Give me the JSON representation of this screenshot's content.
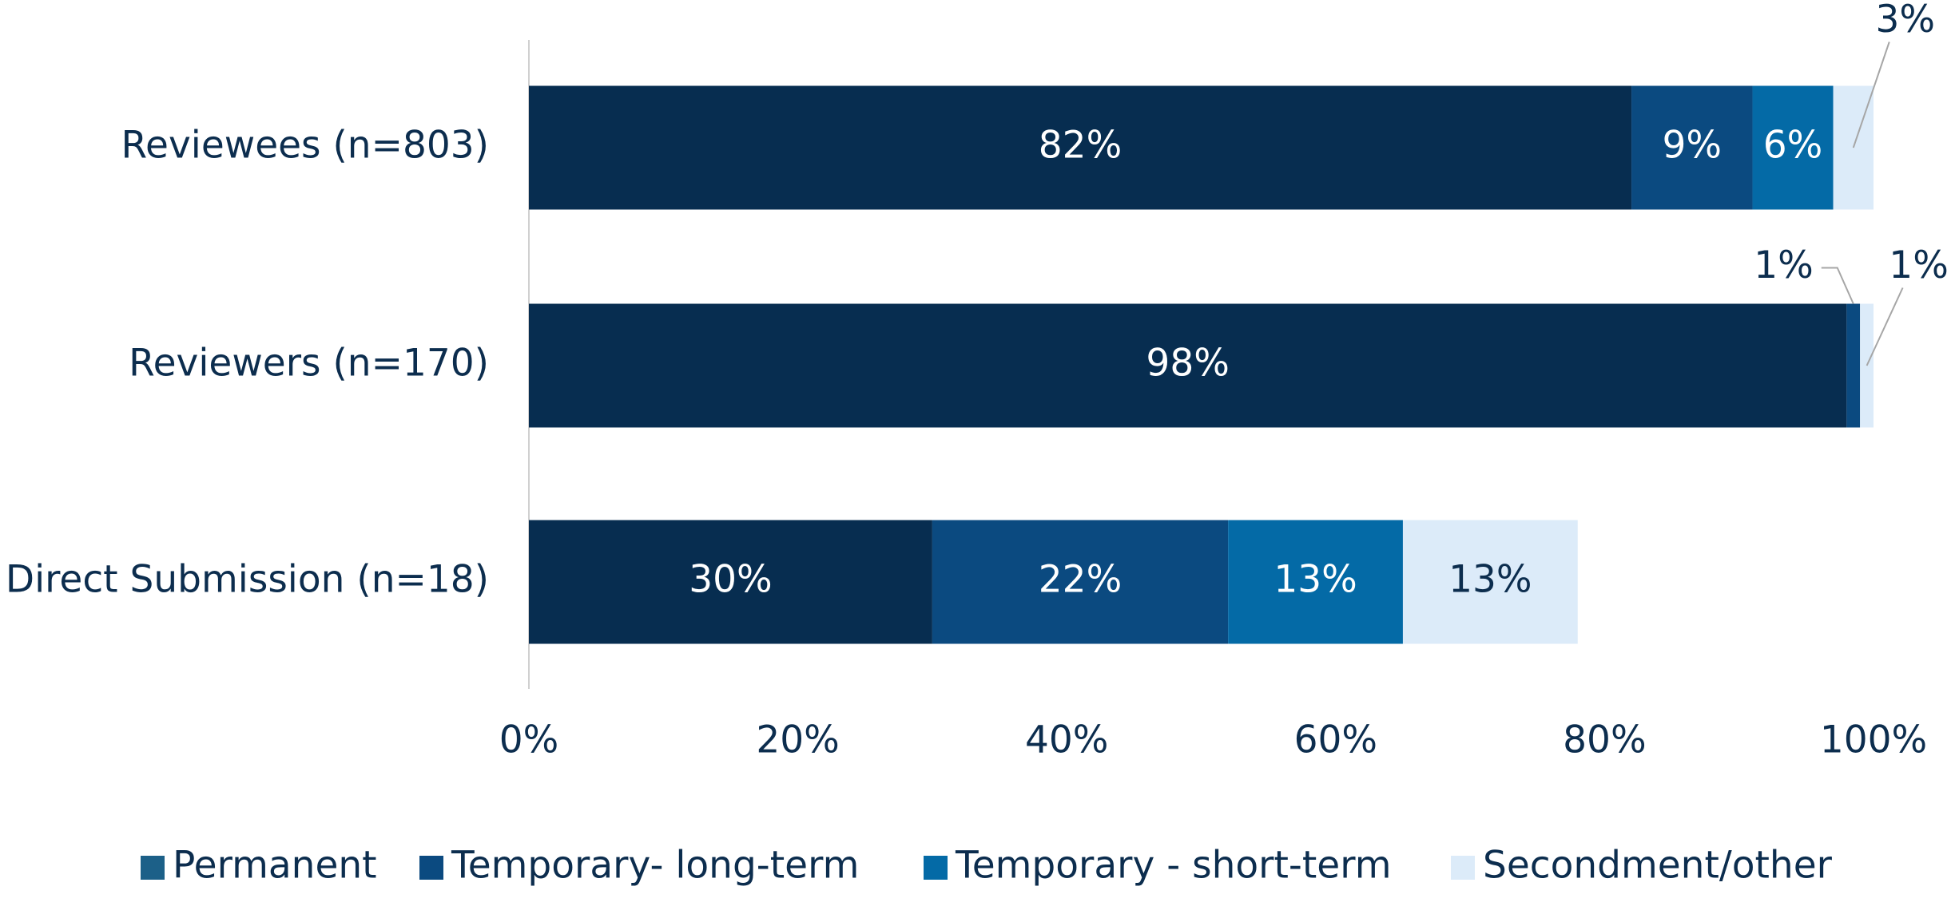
{
  "chart_data": {
    "type": "stacked-bar-horizontal",
    "categories": [
      "Reviewees (n=803)",
      "Reviewers (n=170)",
      "Direct Submission (n=18)"
    ],
    "series": [
      {
        "name": "Permanent",
        "color": "#072d50",
        "values": [
          82,
          98,
          30
        ],
        "value_labels": [
          "82%",
          "98%",
          "30%"
        ]
      },
      {
        "name": "Temporary- long-term",
        "color": "#0b4a80",
        "values": [
          9,
          1,
          22
        ],
        "value_labels": [
          "9%",
          "1%",
          "22%"
        ]
      },
      {
        "name": "Temporary - short-term",
        "color": "#046aa6",
        "values": [
          6,
          null,
          13
        ],
        "value_labels": [
          "6%",
          null,
          "13%"
        ]
      },
      {
        "name": "Secondment/other",
        "color": "#dcebf9",
        "values": [
          3,
          1,
          13
        ],
        "value_labels": [
          "3%",
          "1%",
          "13%"
        ]
      }
    ],
    "xlim": [
      0,
      100
    ],
    "xticks": [
      {
        "value": 0,
        "label": "0%"
      },
      {
        "value": 20,
        "label": "20%"
      },
      {
        "value": 40,
        "label": "40%"
      },
      {
        "value": 60,
        "label": "60%"
      },
      {
        "value": 80,
        "label": "80%"
      },
      {
        "value": 100,
        "label": "100%"
      }
    ],
    "legend": "bottom"
  }
}
